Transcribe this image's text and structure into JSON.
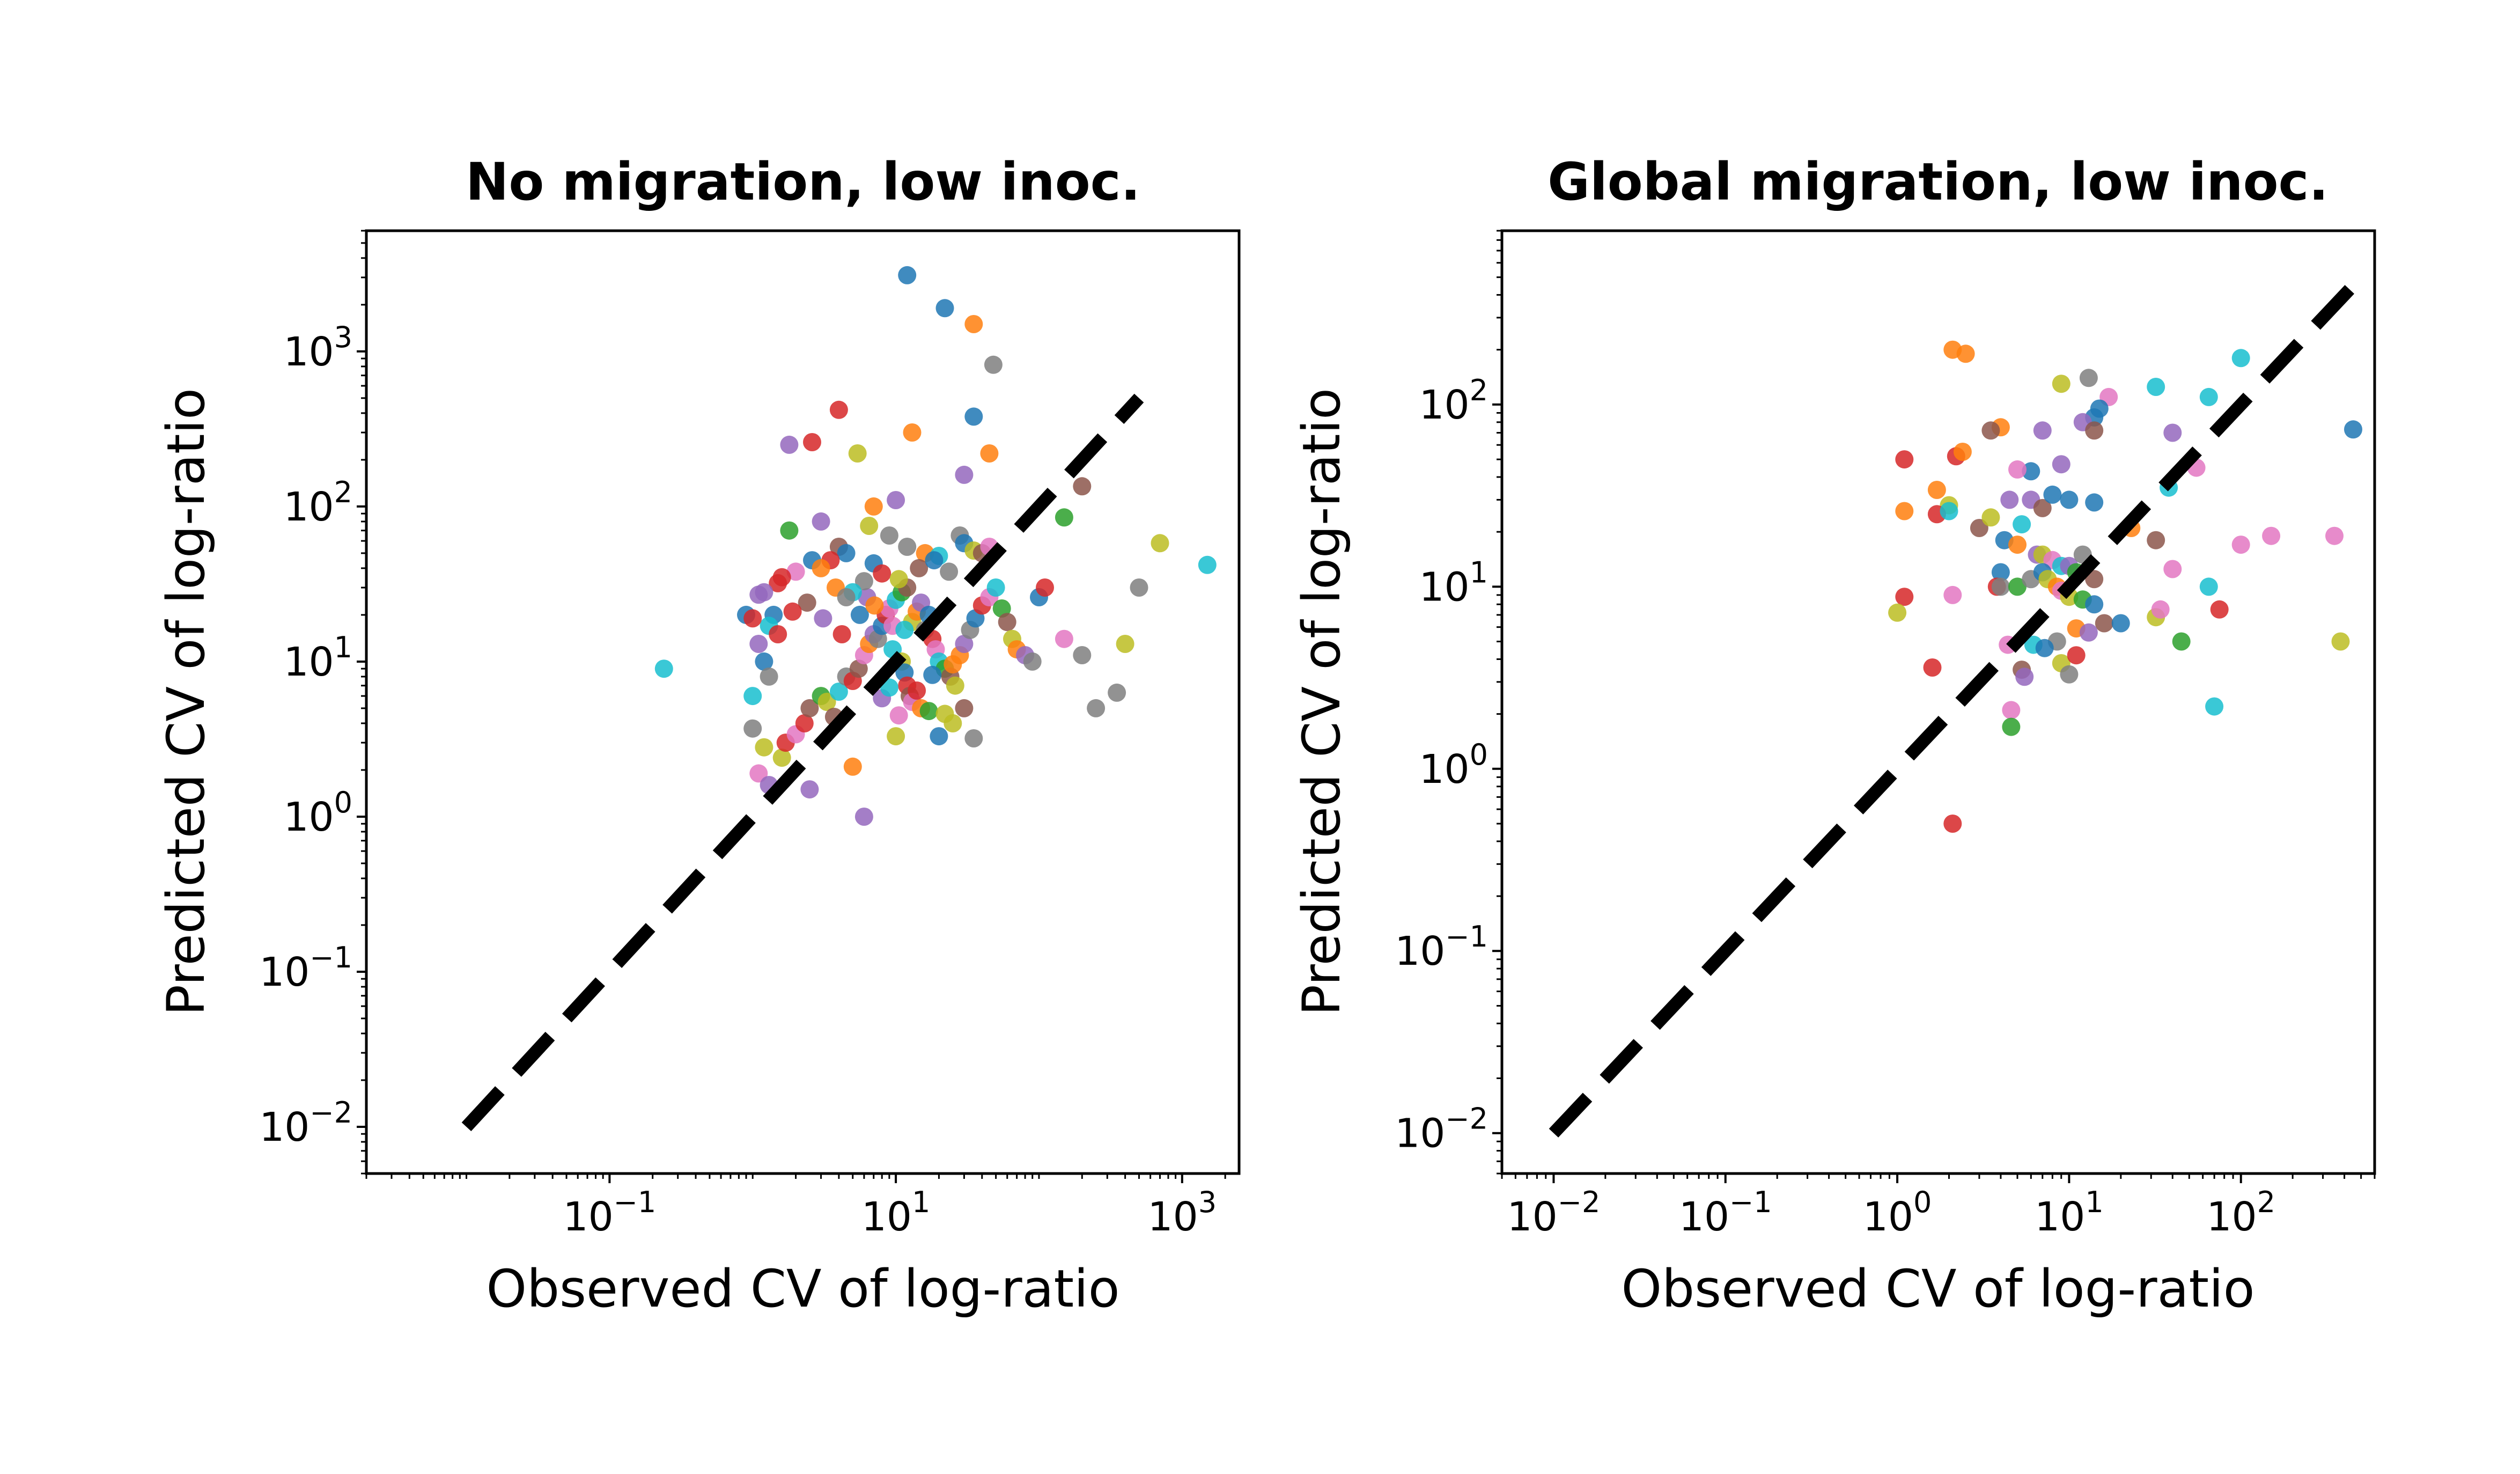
{
  "chart_data": [
    {
      "type": "scatter",
      "title": "No migration, low inoc.",
      "xlabel": "Observed CV of log-ratio",
      "ylabel": "Predicted CV of log-ratio",
      "xscale": "log",
      "yscale": "log",
      "xlim": [
        0.002,
        2500
      ],
      "ylim": [
        0.005,
        6000
      ],
      "xticks": [
        "10^-1",
        "10^1",
        "10^3"
      ],
      "yticks": [
        "10^-2",
        "10^-1",
        "10^0",
        "10^1",
        "10^2",
        "10^3"
      ],
      "reference_line": {
        "style": "dashed",
        "color": "#000000",
        "x": [
          0.01,
          500
        ],
        "y": [
          0.01,
          500
        ]
      },
      "grid": false,
      "legend": "none",
      "palette": [
        "#1f77b4",
        "#ff7f0e",
        "#2ca02c",
        "#d62728",
        "#9467bd",
        "#8c564b",
        "#e377c2",
        "#7f7f7f",
        "#bcbd22",
        "#17becf"
      ],
      "points": [
        [
          12,
          3100,
          0
        ],
        [
          22,
          1900,
          0
        ],
        [
          35,
          1500,
          1
        ],
        [
          48,
          820,
          7
        ],
        [
          35,
          380,
          0
        ],
        [
          13,
          300,
          1
        ],
        [
          45,
          220,
          1
        ],
        [
          4,
          420,
          3
        ],
        [
          2.6,
          260,
          3
        ],
        [
          1.8,
          250,
          4
        ],
        [
          5.4,
          220,
          8
        ],
        [
          30,
          160,
          4
        ],
        [
          10,
          110,
          4
        ],
        [
          7,
          100,
          1
        ],
        [
          150,
          85,
          2
        ],
        [
          200,
          135,
          5
        ],
        [
          1.8,
          70,
          2
        ],
        [
          3,
          80,
          4
        ],
        [
          6.5,
          75,
          8
        ],
        [
          9,
          65,
          7
        ],
        [
          12,
          55,
          7
        ],
        [
          16,
          50,
          1
        ],
        [
          20,
          48,
          9
        ],
        [
          28,
          65,
          7
        ],
        [
          30,
          58,
          0
        ],
        [
          35,
          52,
          8
        ],
        [
          40,
          50,
          5
        ],
        [
          45,
          55,
          6
        ],
        [
          700,
          58,
          8
        ],
        [
          4,
          55,
          5
        ],
        [
          4.5,
          50,
          0
        ],
        [
          3.5,
          45,
          3
        ],
        [
          2.6,
          45,
          0
        ],
        [
          3,
          40,
          1
        ],
        [
          2,
          38,
          6
        ],
        [
          1.6,
          35,
          3
        ],
        [
          1.5,
          32,
          3
        ],
        [
          1.2,
          28,
          4
        ],
        [
          1.4,
          20,
          0
        ],
        [
          1.3,
          17,
          9
        ],
        [
          1.5,
          15,
          3
        ],
        [
          1.1,
          13,
          4
        ],
        [
          1.2,
          10,
          0
        ],
        [
          1.3,
          8,
          7
        ],
        [
          1.0,
          6,
          9
        ],
        [
          1.0,
          3.7,
          7
        ],
        [
          1.2,
          2.8,
          8
        ],
        [
          1.1,
          1.9,
          6
        ],
        [
          1.3,
          1.6,
          4
        ],
        [
          1.6,
          2.4,
          8
        ],
        [
          1.7,
          3,
          3
        ],
        [
          2.0,
          3.4,
          6
        ],
        [
          2.3,
          4,
          3
        ],
        [
          2.5,
          5,
          5
        ],
        [
          3,
          6,
          2
        ],
        [
          3.3,
          5.5,
          8
        ],
        [
          3.7,
          4.4,
          5
        ],
        [
          4,
          6.4,
          9
        ],
        [
          4.5,
          8,
          7
        ],
        [
          5,
          7.5,
          3
        ],
        [
          5.5,
          9,
          5
        ],
        [
          6,
          11,
          6
        ],
        [
          6.5,
          13,
          1
        ],
        [
          7,
          15,
          4
        ],
        [
          7.5,
          14,
          7
        ],
        [
          8,
          17,
          0
        ],
        [
          8.5,
          20,
          3
        ],
        [
          9,
          22,
          6
        ],
        [
          10,
          25,
          9
        ],
        [
          11,
          28,
          2
        ],
        [
          12,
          30,
          5
        ],
        [
          13,
          18,
          8
        ],
        [
          14,
          21,
          1
        ],
        [
          15,
          24,
          4
        ],
        [
          16,
          16,
          7
        ],
        [
          17,
          20,
          0
        ],
        [
          18,
          14,
          3
        ],
        [
          19,
          12,
          6
        ],
        [
          20,
          10,
          9
        ],
        [
          22,
          9,
          2
        ],
        [
          24,
          8,
          5
        ],
        [
          26,
          7,
          8
        ],
        [
          28,
          11,
          1
        ],
        [
          30,
          13,
          4
        ],
        [
          33,
          16,
          7
        ],
        [
          36,
          19,
          0
        ],
        [
          40,
          23,
          3
        ],
        [
          45,
          26,
          6
        ],
        [
          50,
          30,
          9
        ],
        [
          55,
          22,
          2
        ],
        [
          60,
          18,
          5
        ],
        [
          65,
          14,
          8
        ],
        [
          70,
          12,
          1
        ],
        [
          80,
          11,
          4
        ],
        [
          90,
          10,
          7
        ],
        [
          100,
          26,
          0
        ],
        [
          110,
          30,
          3
        ],
        [
          150,
          14,
          6
        ],
        [
          200,
          11,
          7
        ],
        [
          250,
          5,
          7
        ],
        [
          350,
          6.3,
          7
        ],
        [
          400,
          13,
          8
        ],
        [
          500,
          30,
          7
        ],
        [
          1500,
          42,
          9
        ],
        [
          0.24,
          9,
          9
        ],
        [
          0.9,
          20,
          0
        ],
        [
          1.0,
          19,
          3
        ],
        [
          1.1,
          27,
          4
        ],
        [
          4.2,
          15,
          3
        ],
        [
          5.6,
          20,
          0
        ],
        [
          6.3,
          26,
          4
        ],
        [
          7.1,
          23,
          1
        ],
        [
          9.5,
          12,
          9
        ],
        [
          11,
          10,
          8
        ],
        [
          11.5,
          8.5,
          0
        ],
        [
          12,
          7,
          3
        ],
        [
          12.5,
          6,
          5
        ],
        [
          13,
          5.5,
          6
        ],
        [
          15,
          5,
          1
        ],
        [
          17,
          4.8,
          2
        ],
        [
          20,
          3.3,
          0
        ],
        [
          25,
          4,
          8
        ],
        [
          30,
          5,
          5
        ],
        [
          35,
          3.2,
          7
        ],
        [
          10,
          3.3,
          8
        ],
        [
          5,
          2.1,
          1
        ],
        [
          6,
          1.0,
          4
        ],
        [
          2.5,
          1.5,
          4
        ],
        [
          8,
          5.8,
          4
        ],
        [
          9,
          6.8,
          9
        ],
        [
          10.5,
          4.5,
          6
        ],
        [
          14,
          6.5,
          3
        ],
        [
          18,
          8.2,
          0
        ],
        [
          22,
          4.6,
          8
        ],
        [
          25,
          9.6,
          1
        ],
        [
          6,
          33,
          7
        ],
        [
          7,
          43,
          0
        ],
        [
          8,
          37,
          3
        ],
        [
          10.5,
          34,
          8
        ],
        [
          5,
          28,
          9
        ],
        [
          3.8,
          30,
          1
        ],
        [
          2.4,
          24,
          5
        ],
        [
          1.9,
          21,
          3
        ],
        [
          3.1,
          19,
          4
        ],
        [
          4.5,
          26,
          7
        ],
        [
          9.5,
          17,
          6
        ],
        [
          11.5,
          16,
          9
        ],
        [
          14.5,
          40,
          5
        ],
        [
          18.5,
          45,
          0
        ],
        [
          23.5,
          38,
          7
        ]
      ]
    },
    {
      "type": "scatter",
      "title": "Global migration, low inoc.",
      "xlabel": "Observed CV of log-ratio",
      "ylabel": "Predicted CV of log-ratio",
      "xscale": "log",
      "yscale": "log",
      "xlim": [
        0.005,
        600
      ],
      "ylim": [
        0.006,
        900
      ],
      "xticks": [
        "10^-2",
        "10^-1",
        "10^0",
        "10^1",
        "10^2"
      ],
      "yticks": [
        "10^-2",
        "10^-1",
        "10^0",
        "10^1",
        "10^2"
      ],
      "reference_line": {
        "style": "dashed",
        "color": "#000000",
        "x": [
          0.01,
          450
        ],
        "y": [
          0.01,
          450
        ]
      },
      "grid": false,
      "legend": "none",
      "palette": [
        "#1f77b4",
        "#ff7f0e",
        "#2ca02c",
        "#d62728",
        "#9467bd",
        "#8c564b",
        "#e377c2",
        "#7f7f7f",
        "#bcbd22",
        "#17becf"
      ],
      "points": [
        [
          2.1,
          200,
          1
        ],
        [
          2.5,
          190,
          1
        ],
        [
          13,
          140,
          7
        ],
        [
          9,
          130,
          8
        ],
        [
          32,
          125,
          9
        ],
        [
          100,
          180,
          9
        ],
        [
          65,
          110,
          9
        ],
        [
          17,
          110,
          6
        ],
        [
          14,
          85,
          0
        ],
        [
          15,
          95,
          0
        ],
        [
          4,
          75,
          1
        ],
        [
          3.5,
          72,
          5
        ],
        [
          7,
          72,
          4
        ],
        [
          12,
          80,
          4
        ],
        [
          14,
          72,
          5
        ],
        [
          40,
          70,
          4
        ],
        [
          450,
          73,
          0
        ],
        [
          1.1,
          50,
          3
        ],
        [
          2.2,
          52,
          3
        ],
        [
          2.4,
          55,
          1
        ],
        [
          6,
          43,
          0
        ],
        [
          5,
          44,
          6
        ],
        [
          9,
          47,
          4
        ],
        [
          1.7,
          34,
          1
        ],
        [
          2,
          28,
          8
        ],
        [
          1.1,
          26,
          1
        ],
        [
          1.7,
          25,
          3
        ],
        [
          2,
          26,
          9
        ],
        [
          3,
          21,
          5
        ],
        [
          3.5,
          24,
          8
        ],
        [
          4.5,
          30,
          4
        ],
        [
          6,
          30,
          4
        ],
        [
          7,
          27,
          5
        ],
        [
          8,
          32,
          0
        ],
        [
          10,
          30,
          0
        ],
        [
          14,
          29,
          0
        ],
        [
          23,
          21,
          1
        ],
        [
          32,
          18,
          5
        ],
        [
          55,
          45,
          6
        ],
        [
          38,
          35,
          9
        ],
        [
          4.2,
          18,
          0
        ],
        [
          5.3,
          22,
          9
        ],
        [
          5,
          17,
          1
        ],
        [
          6.5,
          15,
          4
        ],
        [
          7,
          15,
          8
        ],
        [
          8,
          14,
          6
        ],
        [
          9,
          13,
          9
        ],
        [
          10,
          13,
          4
        ],
        [
          11,
          12,
          2
        ],
        [
          12,
          15,
          7
        ],
        [
          14,
          11,
          5
        ],
        [
          4,
          12,
          0
        ],
        [
          3.8,
          10,
          3
        ],
        [
          4,
          10,
          7
        ],
        [
          5,
          10,
          2
        ],
        [
          6,
          11,
          7
        ],
        [
          7,
          12,
          0
        ],
        [
          7.5,
          11,
          8
        ],
        [
          8.5,
          10,
          1
        ],
        [
          9,
          9.5,
          6
        ],
        [
          10,
          8.8,
          8
        ],
        [
          12,
          8.5,
          2
        ],
        [
          14,
          8,
          0
        ],
        [
          16,
          6.3,
          5
        ],
        [
          20,
          6.3,
          0
        ],
        [
          11,
          5.9,
          1
        ],
        [
          13,
          5.6,
          4
        ],
        [
          32,
          6.8,
          8
        ],
        [
          34,
          7.5,
          6
        ],
        [
          40,
          12.5,
          6
        ],
        [
          65,
          10,
          9
        ],
        [
          75,
          7.5,
          3
        ],
        [
          100,
          17,
          6
        ],
        [
          150,
          19,
          6
        ],
        [
          350,
          19,
          6
        ],
        [
          380,
          5,
          8
        ],
        [
          45,
          5,
          2
        ],
        [
          70,
          2.2,
          9
        ],
        [
          8.5,
          5,
          7
        ],
        [
          9,
          3.8,
          8
        ],
        [
          10,
          3.3,
          7
        ],
        [
          11,
          4.2,
          3
        ],
        [
          5.3,
          3.5,
          5
        ],
        [
          5.5,
          3.2,
          4
        ],
        [
          6.2,
          4.8,
          9
        ],
        [
          7.2,
          4.6,
          0
        ],
        [
          4.4,
          4.8,
          6
        ],
        [
          4.6,
          2.1,
          6
        ],
        [
          4.6,
          1.7,
          2
        ],
        [
          1.6,
          3.6,
          3
        ],
        [
          1.1,
          8.8,
          3
        ],
        [
          1.0,
          7.2,
          8
        ],
        [
          2.1,
          9,
          6
        ],
        [
          2.1,
          0.5,
          3
        ]
      ]
    }
  ]
}
